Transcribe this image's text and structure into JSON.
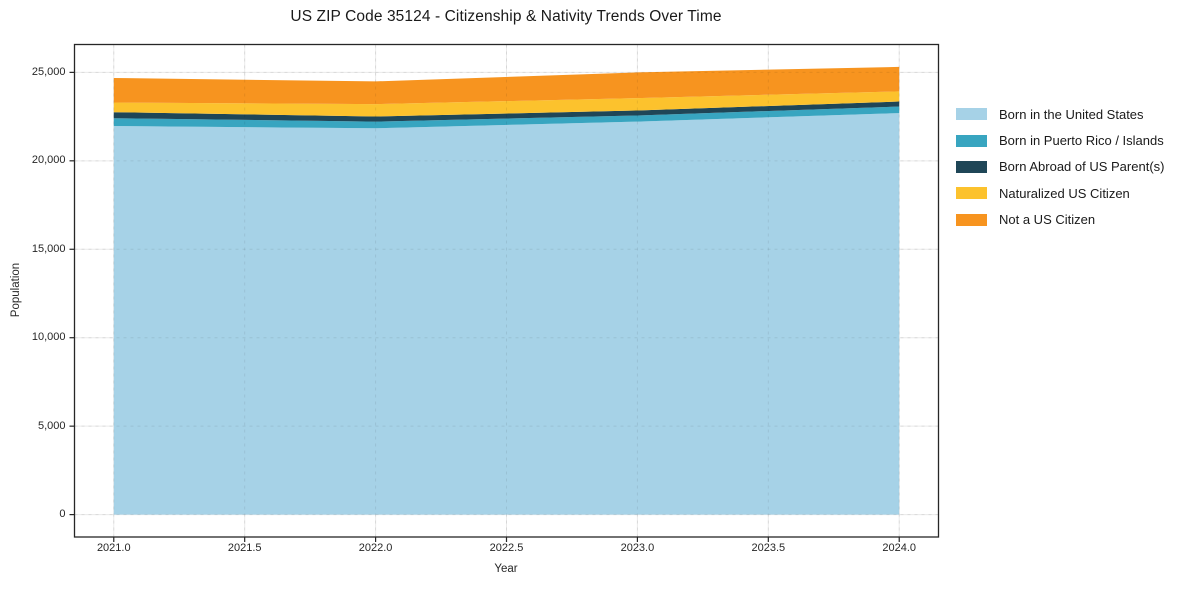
{
  "title": "US ZIP Code 35124 - Citizenship & Nativity Trends Over Time",
  "chart_data": {
    "type": "area",
    "stacked": true,
    "title": "US ZIP Code 35124 - Citizenship & Nativity Trends Over Time",
    "xlabel": "Year",
    "ylabel": "Population",
    "x": [
      2021,
      2022,
      2023,
      2024
    ],
    "series": [
      {
        "name": "Born in the United States",
        "color": "#a6d2e7",
        "values": [
          21970,
          21840,
          22220,
          22700
        ]
      },
      {
        "name": "Born in Puerto Rico / Islands",
        "color": "#38a5c0",
        "values": [
          440,
          375,
          340,
          370
        ]
      },
      {
        "name": "Born Abroad of US Parent(s)",
        "color": "#1f4657",
        "values": [
          340,
          290,
          285,
          285
        ]
      },
      {
        "name": "Naturalized US Citizen",
        "color": "#fcc22d",
        "values": [
          545,
          700,
          700,
          570
        ]
      },
      {
        "name": "Not a US Citizen",
        "color": "#f7941f",
        "values": [
          1385,
          1285,
          1455,
          1385
        ]
      }
    ],
    "totals": [
      24680,
      24490,
      25000,
      25310
    ],
    "x_ticks": [
      2021.0,
      2021.5,
      2022.0,
      2022.5,
      2023.0,
      2023.5,
      2024.0
    ],
    "x_tick_labels": [
      "2021.0",
      "2021.5",
      "2022.0",
      "2022.5",
      "2023.0",
      "2023.5",
      "2024.0"
    ],
    "y_ticks": [
      0,
      5000,
      10000,
      15000,
      20000,
      25000
    ],
    "y_tick_labels": [
      "0",
      "5,000",
      "10,000",
      "15,000",
      "20,000",
      "25,000"
    ],
    "xlim": [
      2020.85,
      2024.15
    ],
    "ylim": [
      -1266,
      26576
    ],
    "grid": true,
    "legend_position": "right-outside",
    "axis_color": "#262626",
    "grid_color": "#eaeaea"
  }
}
